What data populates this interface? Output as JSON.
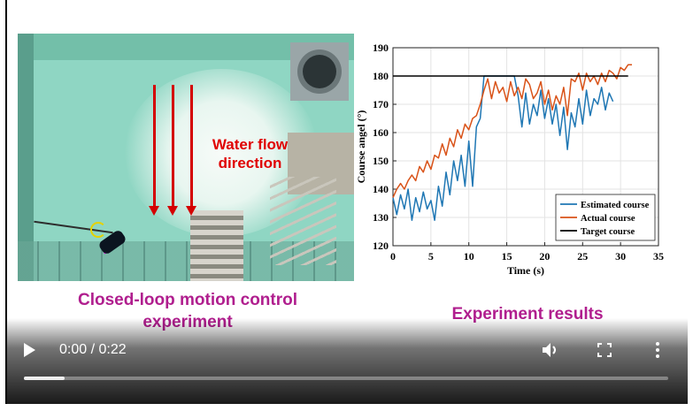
{
  "overlay": {
    "water_flow_label": "Water flow direction",
    "caption_left": "Closed-loop motion control experiment",
    "caption_right": "Experiment results"
  },
  "player": {
    "time_display": "0:00 / 0:22",
    "progress_fraction": 0.063,
    "icons": [
      "play-icon",
      "volume-icon",
      "fullscreen-icon",
      "more-options-icon"
    ]
  },
  "chart_data": {
    "type": "line",
    "xlabel": "Time (s)",
    "ylabel": "Course angel (°)",
    "xlim": [
      0,
      35
    ],
    "ylim": [
      120,
      190
    ],
    "xticks": [
      0,
      5,
      10,
      15,
      20,
      25,
      30,
      35
    ],
    "yticks": [
      120,
      130,
      140,
      150,
      160,
      170,
      180,
      190
    ],
    "grid": true,
    "legend_position": "bottom-right",
    "series": [
      {
        "name": "Estimated course",
        "color": "#1f77b4",
        "x": [
          0,
          0.5,
          1,
          1.5,
          2,
          2.5,
          3,
          3.5,
          4,
          4.5,
          5,
          5.5,
          6,
          6.5,
          7,
          7.5,
          8,
          8.5,
          9,
          9.5,
          10,
          10.5,
          11,
          11.5,
          12,
          12.5,
          13,
          13.5,
          14,
          14.5,
          15,
          15.5,
          16,
          16.5,
          17,
          17.5,
          18,
          18.5,
          19,
          19.5,
          20,
          20.5,
          21,
          21.5,
          22,
          22.5,
          23,
          23.5,
          24,
          24.5,
          25,
          25.5,
          26,
          26.5,
          27,
          27.5,
          28,
          28.5,
          29
        ],
        "y": [
          137,
          131,
          138,
          133,
          140,
          129,
          137,
          132,
          139,
          133,
          136,
          129,
          141,
          134,
          146,
          138,
          150,
          143,
          152,
          141,
          157,
          141,
          162,
          165,
          180,
          180,
          180,
          180,
          180,
          180,
          180,
          180,
          180,
          173,
          162,
          174,
          163,
          170,
          166,
          175,
          165,
          172,
          163,
          170,
          159,
          169,
          154,
          167,
          162,
          172,
          163,
          175,
          166,
          172,
          170,
          176,
          168,
          174,
          171
        ]
      },
      {
        "name": "Actual course",
        "color": "#d95319",
        "x": [
          0,
          0.5,
          1,
          1.5,
          2,
          2.5,
          3,
          3.5,
          4,
          4.5,
          5,
          5.5,
          6,
          6.5,
          7,
          7.5,
          8,
          8.5,
          9,
          9.5,
          10,
          10.5,
          11,
          11.5,
          12,
          12.5,
          13,
          13.5,
          14,
          14.5,
          15,
          15.5,
          16,
          16.5,
          17,
          17.5,
          18,
          18.5,
          19,
          19.5,
          20,
          20.5,
          21,
          21.5,
          22,
          22.5,
          23,
          23.5,
          24,
          24.5,
          25,
          25.5,
          26,
          26.5,
          27,
          27.5,
          28,
          28.5,
          29,
          29.5,
          30,
          30.5,
          31,
          31.5
        ],
        "y": [
          137,
          140,
          142,
          140,
          143,
          145,
          143,
          148,
          146,
          150,
          147,
          152,
          151,
          156,
          152,
          158,
          155,
          161,
          158,
          163,
          161,
          165,
          166,
          170,
          175,
          179,
          172,
          178,
          174,
          176,
          171,
          178,
          173,
          176,
          172,
          179,
          177,
          172,
          174,
          178,
          170,
          175,
          168,
          173,
          170,
          176,
          166,
          179,
          178,
          181,
          175,
          181,
          178,
          180,
          177,
          181,
          178,
          182,
          181,
          179,
          183,
          182,
          184,
          184
        ]
      },
      {
        "name": "Target course",
        "color": "#000000",
        "x": [
          0,
          31
        ],
        "y": [
          180,
          180
        ]
      }
    ]
  }
}
